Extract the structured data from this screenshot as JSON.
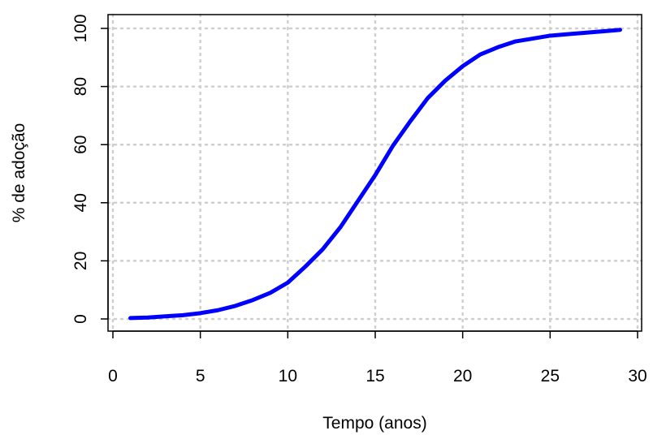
{
  "chart_data": {
    "type": "line",
    "title": "",
    "xlabel": "Tempo (anos)",
    "ylabel": "% de adoção",
    "xlim": [
      0,
      30
    ],
    "ylim": [
      0,
      100
    ],
    "xticks": [
      0,
      5,
      10,
      15,
      20,
      25,
      30
    ],
    "yticks": [
      0,
      20,
      40,
      60,
      80,
      100
    ],
    "grid": true,
    "series": [
      {
        "color": "#0000ff",
        "x": [
          1,
          2,
          3,
          4,
          5,
          6,
          7,
          8,
          9,
          10,
          11,
          12,
          13,
          14,
          15,
          16,
          17,
          18,
          19,
          20,
          21,
          22,
          23,
          24,
          25,
          26,
          27,
          28,
          29
        ],
        "values": [
          0.3,
          0.5,
          0.9,
          1.3,
          2.0,
          3.0,
          4.5,
          6.5,
          9.0,
          12.5,
          18.0,
          24.0,
          31.5,
          40.5,
          49.5,
          59.5,
          68.0,
          76.0,
          82.0,
          87.0,
          91.0,
          93.5,
          95.5,
          96.5,
          97.5,
          98.0,
          98.5,
          99.0,
          99.5
        ]
      }
    ]
  }
}
